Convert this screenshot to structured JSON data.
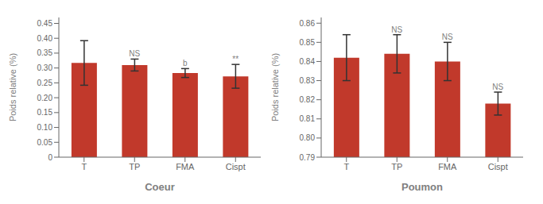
{
  "chart_data": [
    {
      "type": "bar",
      "xlabel": "Coeur",
      "ylabel": "Poids relative (%)",
      "categories": [
        "T",
        "TP",
        "FMA",
        "Cispt"
      ],
      "values": [
        0.317,
        0.31,
        0.283,
        0.272
      ],
      "errors": [
        0.075,
        0.02,
        0.015,
        0.04
      ],
      "annotations": [
        null,
        "NS",
        "b",
        "**"
      ],
      "color": "#c1392b",
      "ylim": [
        0,
        0.47
      ],
      "yticks": [
        0,
        0.05,
        {
          "value": 0.1,
          "label": "0.10"
        },
        0.15,
        {
          "value": 0.2,
          "label": "0.20"
        },
        0.25,
        {
          "value": 0.3,
          "label": "0.30"
        },
        0.35,
        {
          "value": 0.4,
          "label": "0.40"
        },
        0.45
      ],
      "grid": false
    },
    {
      "type": "bar",
      "xlabel": "Poumon",
      "ylabel": "Poids relative (%)",
      "categories": [
        "T",
        "TP",
        "FMA",
        "Cispt"
      ],
      "values": [
        0.842,
        0.844,
        0.84,
        0.818
      ],
      "errors": [
        0.012,
        0.01,
        0.01,
        0.006
      ],
      "annotations": [
        null,
        "NS",
        "NS",
        "NS"
      ],
      "color": "#c1392b",
      "ylim": [
        0.79,
        0.863
      ],
      "yticks": [
        0.79,
        {
          "value": 0.8,
          "label": "0.80"
        },
        0.81,
        0.82,
        0.83,
        0.84,
        0.85,
        0.86
      ],
      "grid": false
    }
  ]
}
